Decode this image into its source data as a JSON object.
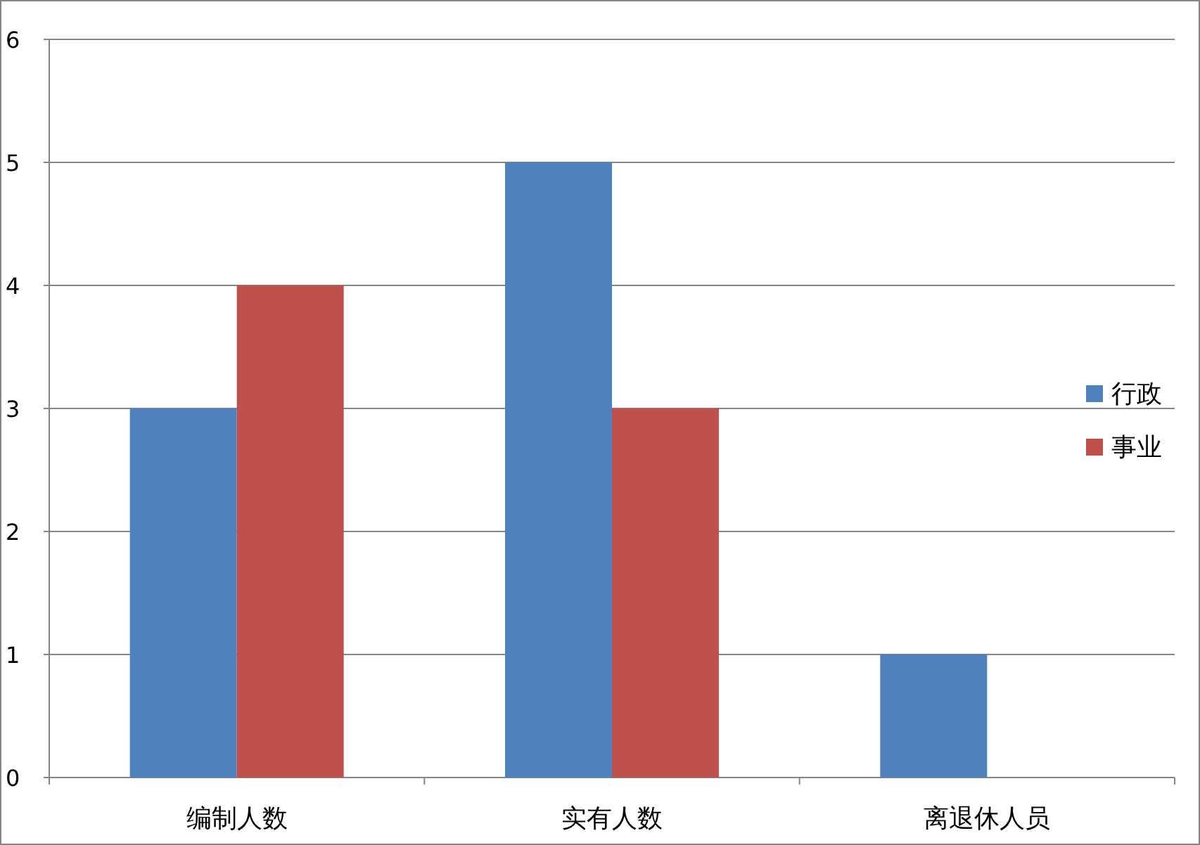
{
  "chart_data": {
    "type": "bar",
    "categories": [
      "编制人数",
      "实有人数",
      "离退休人员"
    ],
    "series": [
      {
        "name": "行政",
        "color": "#4f81bd",
        "values": [
          3,
          5,
          1
        ]
      },
      {
        "name": "事业",
        "color": "#c0504d",
        "values": [
          4,
          3,
          0
        ]
      }
    ],
    "ylim": [
      0,
      6
    ],
    "yticks": [
      0,
      1,
      2,
      3,
      4,
      5,
      6
    ],
    "grid": "y",
    "legend": "right"
  }
}
